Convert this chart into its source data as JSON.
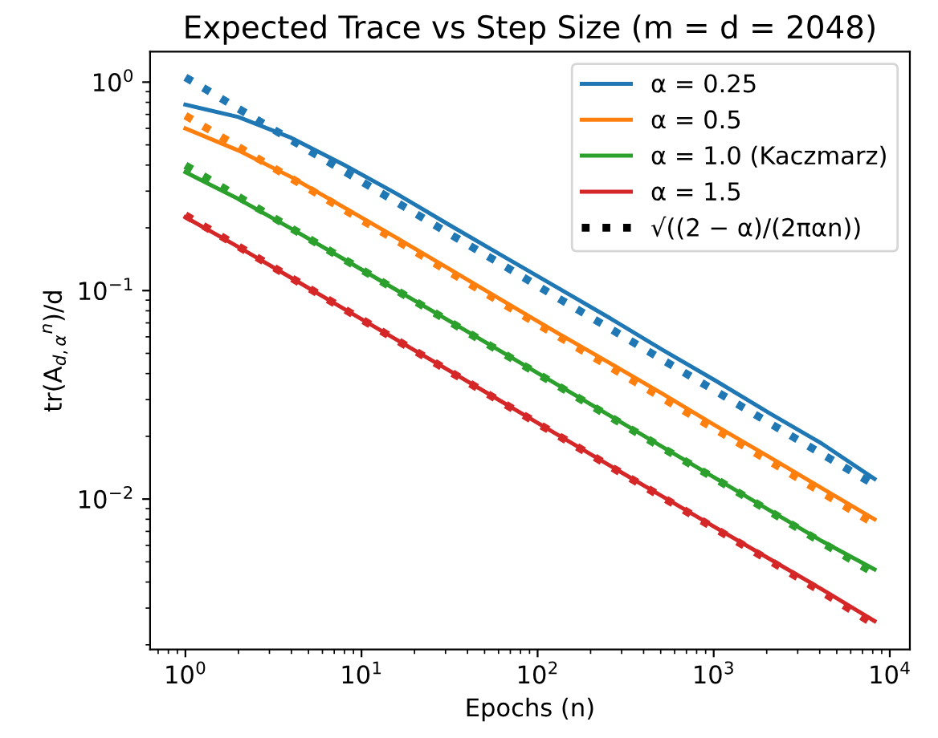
{
  "chart_data": {
    "type": "line",
    "title": "Expected Trace vs Step Size (m = d = 2048)",
    "xlabel": "Epochs (n)",
    "ylabel": "tr(A$_{d,α}$$^{n}$)/d",
    "log": "xy",
    "grid": false,
    "legend": "top right",
    "x": [
      1,
      2,
      4,
      8,
      16,
      32,
      64,
      128,
      256,
      512,
      1024,
      2048,
      4096,
      8192
    ],
    "xlim": [
      0.63,
      13000
    ],
    "ylim": [
      0.0019,
      1.4
    ],
    "xticks": [
      {
        "value": 1,
        "label": "10$^{0}$"
      },
      {
        "value": 10,
        "label": "10$^{1}$"
      },
      {
        "value": 100,
        "label": "10$^{2}$"
      },
      {
        "value": 1000,
        "label": "10$^{3}$"
      },
      {
        "value": 10000,
        "label": "10$^{4}$"
      }
    ],
    "yticks": [
      {
        "value": 0.01,
        "label": "10$^{−2}$"
      },
      {
        "value": 0.1,
        "label": "10$^{−1}$"
      },
      {
        "value": 1,
        "label": "10$^{0}$"
      }
    ],
    "series": [
      {
        "name": "α = 0.25",
        "color": "#1f77b4",
        "line_style": "solid",
        "values": [
          0.78,
          0.68,
          0.54,
          0.4,
          0.29,
          0.205,
          0.146,
          0.104,
          0.074,
          0.052,
          0.037,
          0.026,
          0.0185,
          0.0125
        ]
      },
      {
        "name": "α = 0.5",
        "color": "#ff7f0e",
        "line_style": "solid",
        "values": [
          0.6,
          0.47,
          0.35,
          0.25,
          0.178,
          0.126,
          0.089,
          0.063,
          0.045,
          0.032,
          0.0225,
          0.016,
          0.0113,
          0.008
        ]
      },
      {
        "name": "α = 1.0 (Kaczmarz)",
        "color": "#2ca02c",
        "line_style": "solid",
        "values": [
          0.37,
          0.275,
          0.198,
          0.141,
          0.1,
          0.071,
          0.0503,
          0.0356,
          0.0252,
          0.0178,
          0.0126,
          0.0089,
          0.0063,
          0.0046
        ]
      },
      {
        "name": "α = 1.5",
        "color": "#d62728",
        "line_style": "solid",
        "values": [
          0.225,
          0.162,
          0.115,
          0.0815,
          0.0578,
          0.041,
          0.029,
          0.0205,
          0.0145,
          0.0103,
          0.0073,
          0.0052,
          0.0037,
          0.0026
        ]
      },
      {
        "color": "#1f77b4",
        "line_style": "dotted",
        "values": [
          1.055,
          0.746,
          0.527,
          0.373,
          0.264,
          0.186,
          0.132,
          0.093,
          0.066,
          0.0466,
          0.033,
          0.0233,
          0.0165,
          0.0117
        ]
      },
      {
        "color": "#ff7f0e",
        "line_style": "dotted",
        "values": [
          0.691,
          0.489,
          0.345,
          0.244,
          0.173,
          0.122,
          0.0864,
          0.0611,
          0.0432,
          0.0305,
          0.0216,
          0.0153,
          0.0108,
          0.0076
        ]
      },
      {
        "color": "#2ca02c",
        "line_style": "dotted",
        "values": [
          0.399,
          0.282,
          0.199,
          0.141,
          0.0997,
          0.0705,
          0.0499,
          0.0353,
          0.0249,
          0.0176,
          0.0125,
          0.0088,
          0.0062,
          0.0044
        ]
      },
      {
        "color": "#d62728",
        "line_style": "dotted",
        "values": [
          0.23,
          0.163,
          0.115,
          0.0814,
          0.0576,
          0.0407,
          0.0288,
          0.0204,
          0.0144,
          0.0102,
          0.0072,
          0.0051,
          0.0036,
          0.0025
        ]
      },
      {
        "name": "√((2 − α)/(2παn))",
        "color": "#000000",
        "line_style": "dotted",
        "values": [
          null,
          null,
          null,
          null,
          null,
          null,
          null,
          null,
          null,
          null,
          null,
          null,
          null,
          null
        ]
      }
    ]
  }
}
